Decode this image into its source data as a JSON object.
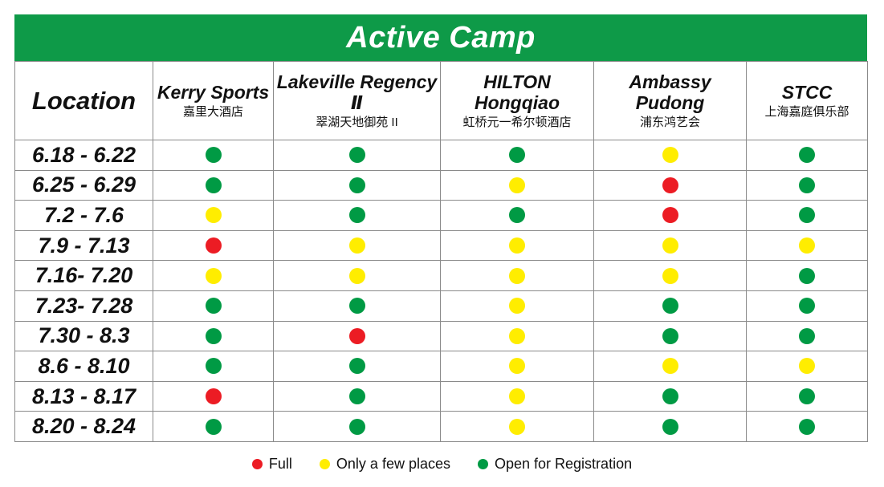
{
  "title": "Active Camp",
  "location_label": "Location",
  "colors": {
    "banner": "#0e9a48",
    "full": "#ec1c24",
    "few": "#ffed00",
    "open": "#009a44"
  },
  "venues": [
    {
      "en": "Kerry Sports",
      "zh": "嘉里大酒店"
    },
    {
      "en": "Lakeville Regency Ⅱ",
      "zh": "翠湖天地御苑 II"
    },
    {
      "en": "HILTON Hongqiao",
      "zh": "虹桥元一希尔顿酒店"
    },
    {
      "en": "Ambassy Pudong",
      "zh": "浦东鸿艺会"
    },
    {
      "en": "STCC",
      "zh": "上海嘉庭俱乐部"
    }
  ],
  "rows": [
    {
      "date": "6.18 - 6.22",
      "status": [
        "open",
        "open",
        "open",
        "few",
        "open"
      ]
    },
    {
      "date": "6.25 - 6.29",
      "status": [
        "open",
        "open",
        "few",
        "full",
        "open"
      ]
    },
    {
      "date": "7.2 - 7.6",
      "status": [
        "few",
        "open",
        "open",
        "full",
        "open"
      ]
    },
    {
      "date": "7.9 - 7.13",
      "status": [
        "full",
        "few",
        "few",
        "few",
        "few"
      ]
    },
    {
      "date": "7.16- 7.20",
      "status": [
        "few",
        "few",
        "few",
        "few",
        "open"
      ]
    },
    {
      "date": "7.23- 7.28",
      "status": [
        "open",
        "open",
        "few",
        "open",
        "open"
      ]
    },
    {
      "date": "7.30 - 8.3",
      "status": [
        "open",
        "full",
        "few",
        "open",
        "open"
      ]
    },
    {
      "date": "8.6 - 8.10",
      "status": [
        "open",
        "open",
        "few",
        "few",
        "few"
      ]
    },
    {
      "date": "8.13 - 8.17",
      "status": [
        "full",
        "open",
        "few",
        "open",
        "open"
      ]
    },
    {
      "date": "8.20 - 8.24",
      "status": [
        "open",
        "open",
        "few",
        "open",
        "open"
      ]
    }
  ],
  "legend": [
    {
      "key": "full",
      "label": "Full"
    },
    {
      "key": "few",
      "label": "Only a few places"
    },
    {
      "key": "open",
      "label": "Open for Registration"
    }
  ]
}
